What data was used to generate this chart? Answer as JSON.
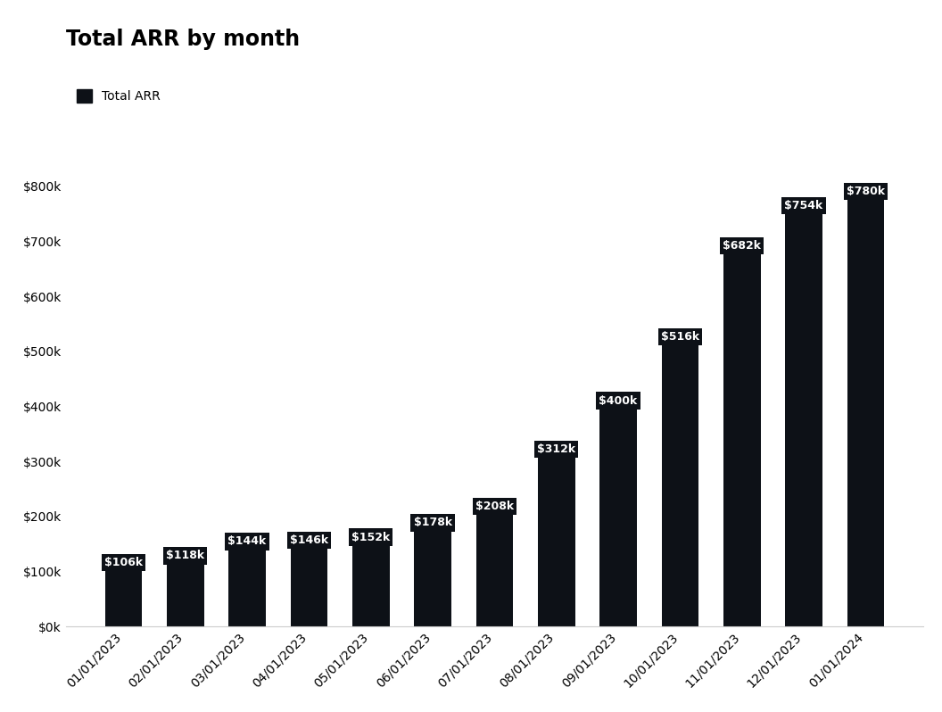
{
  "title": "Total ARR by month",
  "legend_label": "Total ARR",
  "categories": [
    "01/01/2023",
    "02/01/2023",
    "03/01/2023",
    "04/01/2023",
    "05/01/2023",
    "06/01/2023",
    "07/01/2023",
    "08/01/2023",
    "09/01/2023",
    "10/01/2023",
    "11/01/2023",
    "12/01/2023",
    "01/01/2024"
  ],
  "values": [
    106000,
    118000,
    144000,
    146000,
    152000,
    178000,
    208000,
    312000,
    400000,
    516000,
    682000,
    754000,
    780000
  ],
  "labels": [
    "$106k",
    "$118k",
    "$144k",
    "$146k",
    "$152k",
    "$178k",
    "$208k",
    "$312k",
    "$400k",
    "$516k",
    "$682k",
    "$754k",
    "$780k"
  ],
  "bar_color": "#0d1117",
  "label_bg_color": "#0d1117",
  "label_text_color": "#ffffff",
  "background_color": "#ffffff",
  "title_fontsize": 17,
  "axis_label_fontsize": 10,
  "bar_label_fontsize": 9,
  "ylim": [
    0,
    880000
  ],
  "yticks": [
    0,
    100000,
    200000,
    300000,
    400000,
    500000,
    600000,
    700000,
    800000
  ],
  "ytick_labels": [
    "$0k",
    "$100k",
    "$200k",
    "$300k",
    "$400k",
    "$500k",
    "$600k",
    "$700k",
    "$800k"
  ]
}
